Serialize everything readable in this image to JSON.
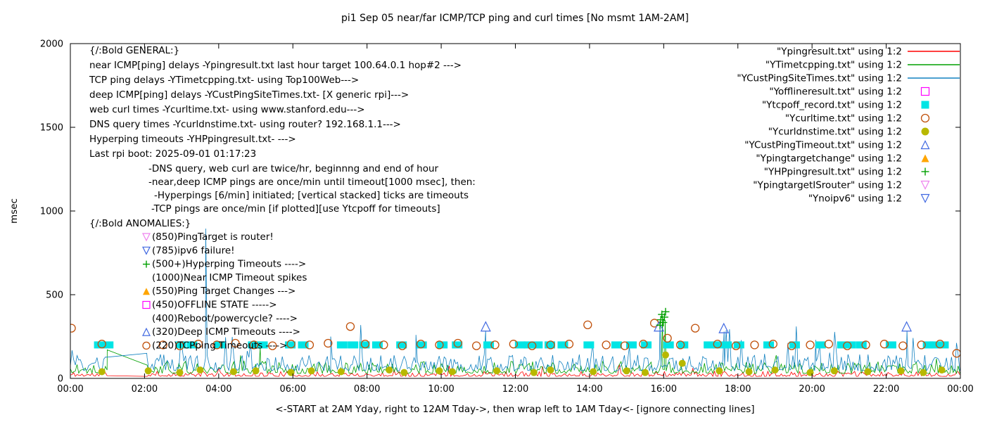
{
  "chart_data": {
    "type": "line",
    "title": "pi1 Sep 05  near/far ICMP/TCP ping and curl times [No msmt 1AM-2AM]",
    "xlabel": "<-START at 2AM Yday, right to 12AM Tday->, then wrap left to 1AM Tday<- [ignore connecting lines]",
    "ylabel": "msec",
    "ylim": [
      0,
      2000
    ],
    "xlim": [
      0,
      24
    ],
    "grid": false,
    "y_ticks": [
      0,
      500,
      1000,
      1500,
      2000
    ],
    "x_ticks": [
      {
        "v": 0,
        "label": "00:00"
      },
      {
        "v": 2,
        "label": "02:00"
      },
      {
        "v": 4,
        "label": "04:00"
      },
      {
        "v": 6,
        "label": "06:00"
      },
      {
        "v": 8,
        "label": "08:00"
      },
      {
        "v": 10,
        "label": "10:00"
      },
      {
        "v": 12,
        "label": "12:00"
      },
      {
        "v": 14,
        "label": "14:00"
      },
      {
        "v": 16,
        "label": "16:00"
      },
      {
        "v": 18,
        "label": "18:00"
      },
      {
        "v": 20,
        "label": "20:00"
      },
      {
        "v": 22,
        "label": "22:00"
      },
      {
        "v": 24,
        "label": "00:00"
      }
    ],
    "gap": {
      "start": 1.0,
      "end": 2.05
    },
    "noise_series": [
      {
        "name": "Ypingresult.txt",
        "color": "#ff0000",
        "base": 12,
        "jitter": 16,
        "spike_prob": 0.015,
        "spike_amp": 70,
        "seed": 11
      },
      {
        "name": "YTimetcpping.txt",
        "color": "#00a000",
        "base": 30,
        "jitter": 38,
        "spike_prob": 0.04,
        "spike_amp": 120,
        "seed": 22
      },
      {
        "name": "YCustPingSiteTimes.txt",
        "color": "#1080c0",
        "base": 45,
        "jitter": 52,
        "spike_prob": 0.05,
        "spike_amp": 190,
        "seed": 33
      }
    ],
    "extra_spikes": [
      {
        "series": 2,
        "x": 3.65,
        "y": 895
      },
      {
        "series": 1,
        "x": 0.995,
        "y": 170
      },
      {
        "series": 2,
        "x": 2.06,
        "y": 150
      },
      {
        "series": 1,
        "x": 5.12,
        "y": 185
      },
      {
        "series": 2,
        "x": 7.02,
        "y": 250
      },
      {
        "series": 2,
        "x": 9.32,
        "y": 260
      },
      {
        "series": 2,
        "x": 11.2,
        "y": 285
      },
      {
        "series": 1,
        "x": 15.97,
        "y": 375
      },
      {
        "series": 2,
        "x": 15.9,
        "y": 330
      },
      {
        "series": 1,
        "x": 16.04,
        "y": 350
      },
      {
        "series": 2,
        "x": 17.63,
        "y": 280
      },
      {
        "series": 2,
        "x": 20.1,
        "y": 230
      },
      {
        "series": 2,
        "x": 22.56,
        "y": 285
      }
    ],
    "scatter_series": [
      {
        "name": "Ytcpoff_record",
        "marker": "square-filled",
        "color": "#00e5e5",
        "size": 15,
        "points": [
          [
            0.78,
            200
          ],
          [
            1.02,
            200
          ],
          [
            2.98,
            200
          ],
          [
            3.28,
            200
          ],
          [
            4.03,
            200
          ],
          [
            4.93,
            200
          ],
          [
            5.18,
            200
          ],
          [
            5.93,
            200
          ],
          [
            6.28,
            200
          ],
          [
            7.33,
            200
          ],
          [
            7.62,
            200
          ],
          [
            7.93,
            200
          ],
          [
            8.28,
            200
          ],
          [
            8.93,
            200
          ],
          [
            9.47,
            200
          ],
          [
            10.03,
            200
          ],
          [
            10.43,
            200
          ],
          [
            11.28,
            200
          ],
          [
            12.13,
            200
          ],
          [
            12.48,
            200,
            1
          ],
          [
            12.93,
            200
          ],
          [
            13.28,
            200
          ],
          [
            13.98,
            200
          ],
          [
            14.73,
            200
          ],
          [
            15.13,
            200
          ],
          [
            15.53,
            200
          ],
          [
            16.13,
            200
          ],
          [
            16.52,
            200
          ],
          [
            17.22,
            200
          ],
          [
            17.58,
            200,
            1
          ],
          [
            18.03,
            200
          ],
          [
            18.83,
            200
          ],
          [
            19.53,
            200
          ],
          [
            20.23,
            200
          ],
          [
            20.93,
            200,
            1
          ],
          [
            21.33,
            200
          ],
          [
            22.13,
            200
          ],
          [
            23.13,
            200
          ],
          [
            23.43,
            200,
            1
          ]
        ]
      },
      {
        "name": "Ycurltime",
        "marker": "circle-open",
        "color": "#c0500a",
        "size": 11,
        "points": [
          [
            0.03,
            300
          ],
          [
            0.85,
            205
          ],
          [
            2.5,
            200
          ],
          [
            2.95,
            195
          ],
          [
            3.45,
            205
          ],
          [
            3.95,
            200
          ],
          [
            4.45,
            210
          ],
          [
            4.95,
            200
          ],
          [
            5.45,
            195
          ],
          [
            5.95,
            205
          ],
          [
            6.45,
            200
          ],
          [
            6.95,
            210
          ],
          [
            7.55,
            310
          ],
          [
            7.95,
            205
          ],
          [
            8.45,
            200
          ],
          [
            8.95,
            195
          ],
          [
            9.45,
            205
          ],
          [
            9.95,
            200
          ],
          [
            10.45,
            210
          ],
          [
            10.95,
            195
          ],
          [
            11.45,
            200
          ],
          [
            11.95,
            205
          ],
          [
            12.45,
            195
          ],
          [
            12.95,
            200
          ],
          [
            13.45,
            205
          ],
          [
            13.95,
            320
          ],
          [
            14.45,
            200
          ],
          [
            14.95,
            195
          ],
          [
            15.45,
            205
          ],
          [
            15.75,
            330
          ],
          [
            16.1,
            240
          ],
          [
            16.45,
            200
          ],
          [
            16.85,
            300
          ],
          [
            17.45,
            205
          ],
          [
            17.95,
            195
          ],
          [
            18.45,
            200
          ],
          [
            18.95,
            205
          ],
          [
            19.45,
            195
          ],
          [
            19.95,
            200
          ],
          [
            20.45,
            205
          ],
          [
            20.95,
            195
          ],
          [
            21.45,
            200
          ],
          [
            21.95,
            205
          ],
          [
            22.45,
            195
          ],
          [
            22.95,
            200
          ],
          [
            23.45,
            205
          ],
          [
            23.9,
            150
          ]
        ]
      },
      {
        "name": "Ycurldnstime",
        "marker": "circle-filled",
        "color": "#b8b800",
        "size": 10,
        "points": [
          [
            0.85,
            40
          ],
          [
            2.1,
            45
          ],
          [
            2.95,
            35
          ],
          [
            3.5,
            50
          ],
          [
            4.4,
            40
          ],
          [
            5.0,
            45
          ],
          [
            5.95,
            35
          ],
          [
            6.5,
            45
          ],
          [
            7.3,
            40
          ],
          [
            8.6,
            50
          ],
          [
            9.0,
            35
          ],
          [
            9.95,
            45
          ],
          [
            10.3,
            40
          ],
          [
            11.5,
            45
          ],
          [
            12.5,
            35
          ],
          [
            12.95,
            50
          ],
          [
            14.1,
            40
          ],
          [
            15.0,
            45
          ],
          [
            15.5,
            35
          ],
          [
            16.05,
            140
          ],
          [
            16.5,
            90
          ],
          [
            17.5,
            45
          ],
          [
            18.3,
            40
          ],
          [
            19.0,
            50
          ],
          [
            19.95,
            35
          ],
          [
            20.6,
            45
          ],
          [
            21.5,
            40
          ],
          [
            22.4,
            45
          ],
          [
            23.0,
            35
          ],
          [
            23.5,
            50
          ]
        ]
      },
      {
        "name": "YCustPingTimeout",
        "marker": "triangle-up-open",
        "color": "#4169e1",
        "size": 13,
        "points": [
          [
            11.2,
            310
          ],
          [
            15.87,
            310
          ],
          [
            17.62,
            300
          ],
          [
            22.55,
            310
          ]
        ]
      },
      {
        "name": "YHPpingresult",
        "marker": "plus",
        "color": "#00a000",
        "size": 11,
        "points": [
          [
            15.9,
            318
          ],
          [
            15.92,
            350
          ],
          [
            15.95,
            382
          ],
          [
            15.99,
            334
          ],
          [
            16.02,
            366
          ],
          [
            16.05,
            398
          ]
        ]
      }
    ]
  },
  "legend": [
    {
      "label": "\"Ypingresult.txt\" using 1:2",
      "marker": "line",
      "color": "#ff0000"
    },
    {
      "label": "\"YTimetcpping.txt\" using 1:2",
      "marker": "line",
      "color": "#00a000"
    },
    {
      "label": "\"YCustPingSiteTimes.txt\" using 1:2",
      "marker": "line",
      "color": "#1080c0"
    },
    {
      "label": "\"Yofflineresult.txt\" using 1:2",
      "marker": "square-open",
      "color": "#ff00ff"
    },
    {
      "label": "\"Ytcpoff_record.txt\" using 1:2",
      "marker": "square-filled",
      "color": "#00e5e5"
    },
    {
      "label": "\"Ycurltime.txt\" using 1:2",
      "marker": "circle-open",
      "color": "#c0500a"
    },
    {
      "label": "\"Ycurldnstime.txt\" using 1:2",
      "marker": "circle-filled",
      "color": "#b8b800"
    },
    {
      "label": "\"YCustPingTimeout.txt\" using 1:2",
      "marker": "triangle-up-open",
      "color": "#4169e1"
    },
    {
      "label": "\"Ypingtargetchange\" using 1:2",
      "marker": "triangle-up-filled",
      "color": "#ffa500"
    },
    {
      "label": "\"YHPpingresult.txt\" using 1:2",
      "marker": "plus",
      "color": "#00a000"
    },
    {
      "label": "\"YpingtargetISrouter\" using 1:2",
      "marker": "triangle-down-open",
      "color": "#ee82ee"
    },
    {
      "label": "\"Ynoipv6\" using 1:2",
      "marker": "triangle-down-open",
      "color": "#4169e1"
    }
  ],
  "annotations": {
    "general_heading": "{/:Bold GENERAL:}",
    "general_lines": [
      "near ICMP[ping] delays -Ypingresult.txt last hour target 100.64.0.1 hop#2 --->",
      "TCP ping delays -YTimetcpping.txt- using Top100Web--->",
      "deep ICMP[ping] delays -YCustPingSiteTimes.txt- [X generic rpi]--->",
      "web curl times -Ycurltime.txt- using www.stanford.edu--->",
      "DNS query times -Ycurldnstime.txt- using router? 192.168.1.1--->",
      "Hyperping timeouts -YHPpingresult.txt- --->",
      "Last rpi boot: 2025-09-01 01:17:23"
    ],
    "notes": [
      {
        "text": "-DNS query, web curl are twice/hr, beginnng and end of hour",
        "indent": 0
      },
      {
        "text": "-near,deep ICMP pings are once/min until timeout[1000 msec], then:",
        "indent": 0
      },
      {
        "text": "-Hyperpings [6/min] initiated; [vertical stacked] ticks are timeouts",
        "indent": 8
      },
      {
        "text": "-TCP pings are once/min [if plotted][use Ytcpoff for timeouts]",
        "indent": 4
      }
    ],
    "anomalies_heading": "{/:Bold ANOMALIES:}",
    "anomalies": [
      {
        "marker": "triangle-down-open",
        "color": "#ee82ee",
        "text": "(850)PingTarget is router!"
      },
      {
        "marker": "triangle-down-open",
        "color": "#4169e1",
        "text": "(785)ipv6 failure!"
      },
      {
        "marker": "plus",
        "color": "#00a000",
        "text": "(500+)Hyperping Timeouts ---->"
      },
      {
        "marker": "none",
        "color": "#000000",
        "text": "(1000)Near ICMP Timeout spikes"
      },
      {
        "marker": "triangle-up-filled",
        "color": "#ffa500",
        "text": "(550)Ping Target Changes --->"
      },
      {
        "marker": "square-open",
        "color": "#ff00ff",
        "text": "(450)OFFLINE STATE ----->"
      },
      {
        "marker": "none",
        "color": "#000000",
        "text": "(400)Reboot/powercycle? ---->"
      },
      {
        "marker": "triangle-up-open",
        "color": "#4169e1",
        "text": "(320)Deep ICMP Timeouts ---->"
      },
      {
        "marker": "circle-open",
        "color": "#c0500a",
        "text": "(220)TCPping Timeouts ---->"
      }
    ]
  },
  "colors": {
    "axis": "#000000",
    "background": "#ffffff"
  }
}
